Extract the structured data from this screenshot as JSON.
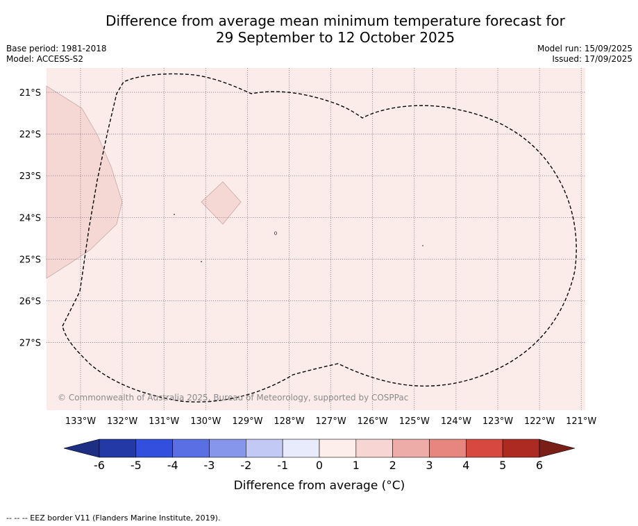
{
  "title": {
    "line1": "Difference from average mean minimum temperature forecast for",
    "line2": "29 September to 12 October 2025"
  },
  "meta_left": {
    "base_period": "Base period: 1981-2018",
    "model": "Model: ACCESS-S2"
  },
  "meta_right": {
    "model_run": "Model run: 15/09/2025",
    "issued": "Issued: 17/09/2025"
  },
  "map": {
    "latitude_labels": [
      "21°S",
      "22°S",
      "23°S",
      "24°S",
      "25°S",
      "26°S",
      "27°S"
    ],
    "longitude_labels": [
      "133°W",
      "132°W",
      "131°W",
      "130°W",
      "129°W",
      "128°W",
      "127°W",
      "126°W",
      "125°W",
      "124°W",
      "123°W",
      "122°W",
      "121°W"
    ],
    "background_category": "0 to 1",
    "west_region_category": "1 to 2",
    "copyright": "© Commonwealth of Australia 2025, Bureau of Meteorology, supported by COSPPac",
    "eez_border_style": "dashed"
  },
  "colorbar": {
    "title": "Difference from average (°C)",
    "ticks": [
      "-6",
      "-5",
      "-4",
      "-3",
      "-2",
      "-1",
      "0",
      "1",
      "2",
      "3",
      "4",
      "5",
      "6"
    ],
    "colors": [
      "#2339a6",
      "#3250dd",
      "#5a6fe3",
      "#8696ea",
      "#c1c9f4",
      "#e8ebfb",
      "#fdeeeb",
      "#f6d5d2",
      "#edaca7",
      "#e6867f",
      "#d74840",
      "#ac2a21"
    ],
    "under_color": "#1e2e82",
    "over_color": "#7a1e18"
  },
  "colors": {
    "background_fill": "#fbecea",
    "region_fill": "#f5d7d3",
    "grid": "#7a6a80"
  },
  "footer": "-- -- -- EEZ border V11 (Flanders Marine Institute, 2019)."
}
